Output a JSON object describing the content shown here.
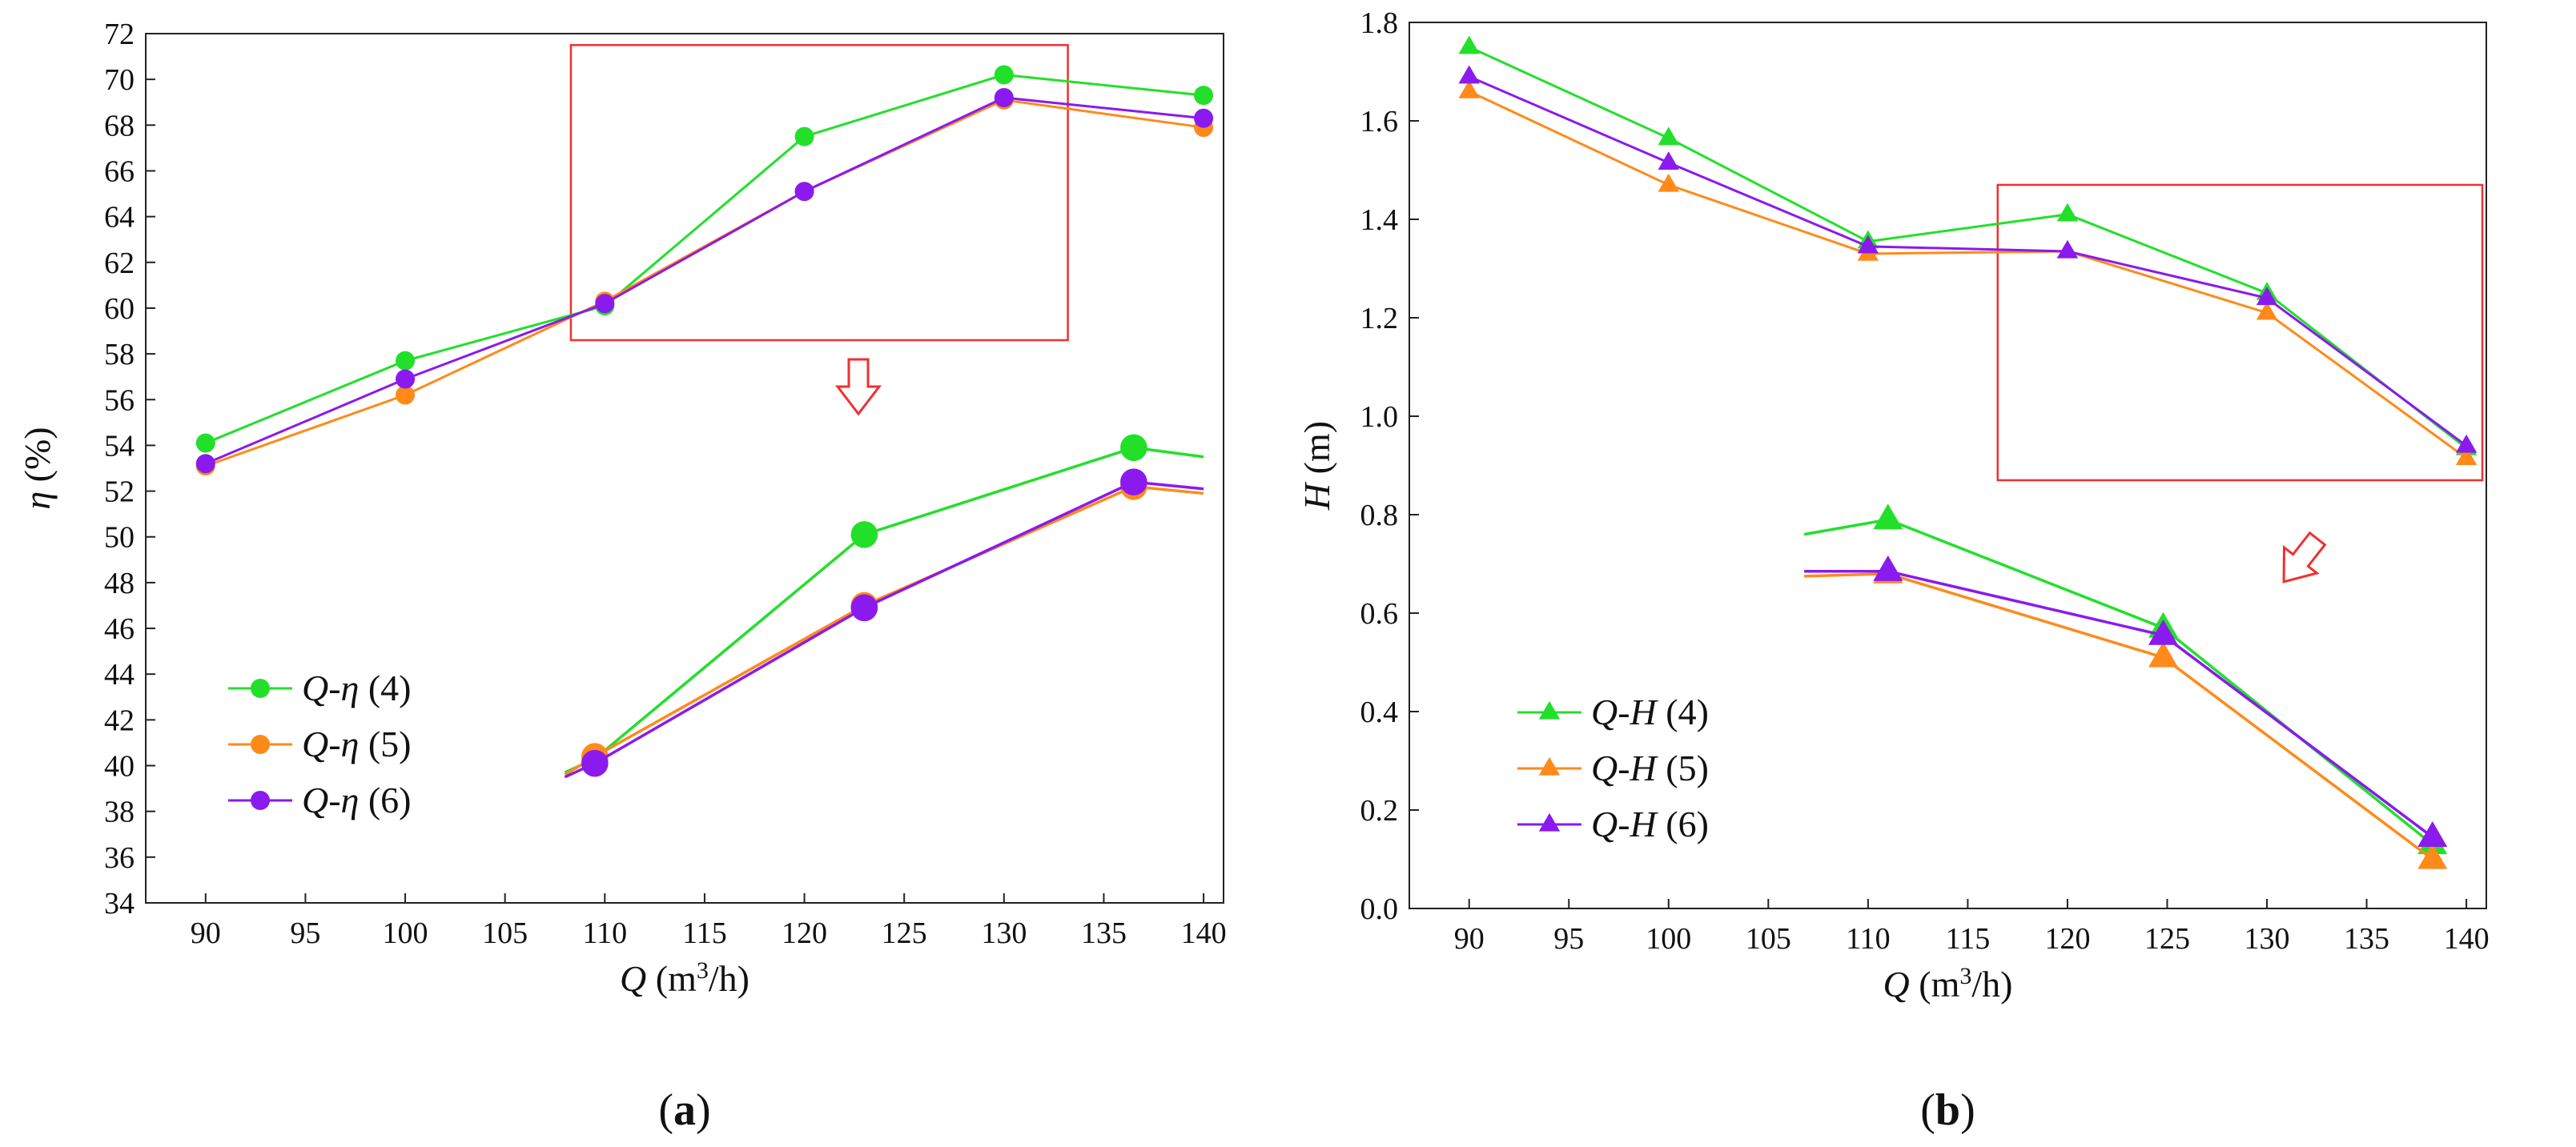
{
  "chart_data": [
    {
      "type": "line",
      "panel_label": "(a)",
      "xlabel": "Q (m³/h)",
      "ylabel": "η (%)",
      "xlim": [
        87,
        141
      ],
      "ylim": [
        34,
        72
      ],
      "x_ticks": [
        90,
        95,
        100,
        105,
        110,
        115,
        120,
        125,
        130,
        135,
        140
      ],
      "y_ticks": [
        34,
        36,
        38,
        40,
        42,
        44,
        46,
        48,
        50,
        52,
        54,
        56,
        58,
        60,
        62,
        64,
        66,
        68,
        70,
        72
      ],
      "x": [
        90,
        100,
        110,
        120,
        130,
        140
      ],
      "series": [
        {
          "name": "Q-η (4)",
          "color": "#22e02a",
          "marker": "circle",
          "values": [
            54.1,
            57.7,
            60.1,
            67.5,
            70.2,
            69.3
          ]
        },
        {
          "name": "Q-η (5)",
          "color": "#ff8a1a",
          "marker": "circle",
          "values": [
            53.1,
            56.2,
            60.3,
            65.1,
            69.1,
            67.9
          ]
        },
        {
          "name": "Q-η (6)",
          "color": "#8a1aee",
          "marker": "circle",
          "values": [
            53.2,
            56.9,
            60.2,
            65.1,
            69.2,
            68.3
          ]
        }
      ],
      "legend_placement": "lower-left",
      "zoom_box": {
        "x_range": [
          108.3,
          133.2
        ],
        "y_range": [
          58.6,
          71.5
        ]
      },
      "inset": {
        "description": "magnified view of Q = 110–130 region",
        "x": [
          109.5,
          123,
          136.5
        ],
        "series": [
          {
            "name": "Q-η (4)",
            "values": [
              40.3,
              50.1,
              53.9
            ],
            "lead_in": [
              108,
              39.7
            ],
            "tail": [
              140,
              53.5
            ]
          },
          {
            "name": "Q-η (5)",
            "values": [
              40.4,
              47.0,
              52.2
            ],
            "lead_in": [
              108,
              39.6
            ],
            "tail": [
              140,
              51.9
            ]
          },
          {
            "name": "Q-η (6)",
            "values": [
              40.1,
              46.9,
              52.4
            ],
            "lead_in": [
              108,
              39.5
            ],
            "tail": [
              140,
              52.1
            ]
          }
        ]
      }
    },
    {
      "type": "line",
      "panel_label": "(b)",
      "xlabel": "Q (m³/h)",
      "ylabel": "H (m)",
      "xlim": [
        87,
        141
      ],
      "ylim": [
        0.0,
        1.8
      ],
      "x_ticks": [
        90,
        95,
        100,
        105,
        110,
        115,
        120,
        125,
        130,
        135,
        140
      ],
      "y_ticks": [
        0.0,
        0.2,
        0.4,
        0.6,
        0.8,
        1.0,
        1.2,
        1.4,
        1.6,
        1.8
      ],
      "x": [
        90,
        100,
        110,
        120,
        130,
        140
      ],
      "series": [
        {
          "name": "Q-H (4)",
          "color": "#22e02a",
          "marker": "triangle",
          "values": [
            1.75,
            1.565,
            1.355,
            1.41,
            1.25,
            0.935
          ]
        },
        {
          "name": "Q-H (5)",
          "color": "#ff8a1a",
          "marker": "triangle",
          "values": [
            1.66,
            1.47,
            1.33,
            1.335,
            1.21,
            0.915
          ]
        },
        {
          "name": "Q-H (6)",
          "color": "#8a1aee",
          "marker": "triangle",
          "values": [
            1.69,
            1.515,
            1.345,
            1.335,
            1.24,
            0.94
          ]
        }
      ],
      "legend_placement": "lower-left",
      "zoom_box": {
        "x_range": [
          116.5,
          140.8
        ],
        "y_range": [
          0.87,
          1.47
        ]
      },
      "inset": {
        "description": "magnified view of Q = 120–140 region",
        "x": [
          111,
          124.8,
          138.3
        ],
        "series": [
          {
            "name": "Q-H (4)",
            "values": [
              0.79,
              0.57,
              0.13
            ],
            "lead_in": [
              106.8,
              0.76
            ]
          },
          {
            "name": "Q-H (5)",
            "values": [
              0.68,
              0.51,
              0.1
            ],
            "lead_in": [
              106.8,
              0.675
            ]
          },
          {
            "name": "Q-H (6)",
            "values": [
              0.685,
              0.555,
              0.145
            ],
            "lead_in": [
              106.8,
              0.685
            ]
          }
        ]
      }
    }
  ]
}
